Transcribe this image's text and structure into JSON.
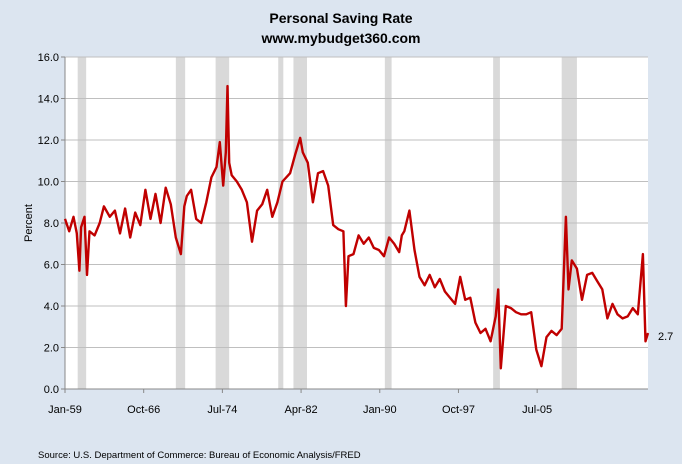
{
  "chart_data": {
    "type": "line",
    "title": "Personal Saving Rate",
    "subtitle": "www.mybudget360.com",
    "ylabel": "Percent",
    "xlabel": "",
    "ylim": [
      0,
      16
    ],
    "yticks": [
      "0.0",
      "2.0",
      "4.0",
      "6.0",
      "8.0",
      "10.0",
      "12.0",
      "14.0",
      "16.0"
    ],
    "xticks": [
      {
        "label": "Jan-59",
        "date": "1959-01"
      },
      {
        "label": "Oct-66",
        "date": "1966-10"
      },
      {
        "label": "Jul-74",
        "date": "1974-07"
      },
      {
        "label": "Apr-82",
        "date": "1982-04"
      },
      {
        "label": "Jan-90",
        "date": "1990-01"
      },
      {
        "label": "Oct-97",
        "date": "1997-10"
      },
      {
        "label": "Jul-05",
        "date": "2005-07"
      }
    ],
    "xlim": [
      "1959-01",
      "2016-06"
    ],
    "line_color": "#c00000",
    "recession_color": "#d9d9d9",
    "grid": "horizontal",
    "recessions": [
      [
        "1960-04",
        "1961-02"
      ],
      [
        "1969-12",
        "1970-11"
      ],
      [
        "1973-11",
        "1975-03"
      ],
      [
        "1980-01",
        "1980-07"
      ],
      [
        "1981-07",
        "1982-11"
      ],
      [
        "1990-07",
        "1991-03"
      ],
      [
        "2001-03",
        "2001-11"
      ],
      [
        "2007-12",
        "2009-06"
      ]
    ],
    "end_label": "2.7",
    "series": [
      {
        "values": [
          [
            "1959-01",
            8.2
          ],
          [
            "1959-06",
            7.6
          ],
          [
            "1959-11",
            8.3
          ],
          [
            "1960-03",
            7.5
          ],
          [
            "1960-06",
            5.7
          ],
          [
            "1960-08",
            7.8
          ],
          [
            "1960-12",
            8.3
          ],
          [
            "1961-03",
            5.5
          ],
          [
            "1961-06",
            7.6
          ],
          [
            "1961-12",
            7.4
          ],
          [
            "1962-06",
            8.0
          ],
          [
            "1962-11",
            8.8
          ],
          [
            "1963-06",
            8.3
          ],
          [
            "1963-12",
            8.6
          ],
          [
            "1964-06",
            7.5
          ],
          [
            "1964-12",
            8.7
          ],
          [
            "1965-06",
            7.3
          ],
          [
            "1965-12",
            8.5
          ],
          [
            "1966-06",
            7.9
          ],
          [
            "1966-12",
            9.6
          ],
          [
            "1967-06",
            8.2
          ],
          [
            "1967-12",
            9.4
          ],
          [
            "1968-06",
            8.0
          ],
          [
            "1968-12",
            9.7
          ],
          [
            "1969-06",
            8.9
          ],
          [
            "1969-12",
            7.3
          ],
          [
            "1970-06",
            6.5
          ],
          [
            "1970-10",
            8.8
          ],
          [
            "1971-01",
            9.3
          ],
          [
            "1971-06",
            9.6
          ],
          [
            "1971-12",
            8.2
          ],
          [
            "1972-06",
            8.0
          ],
          [
            "1972-12",
            9.0
          ],
          [
            "1973-06",
            10.2
          ],
          [
            "1973-12",
            10.7
          ],
          [
            "1974-04",
            11.9
          ],
          [
            "1974-08",
            9.8
          ],
          [
            "1974-11",
            11.4
          ],
          [
            "1975-01",
            14.6
          ],
          [
            "1975-03",
            10.9
          ],
          [
            "1975-06",
            10.3
          ],
          [
            "1975-12",
            10.0
          ],
          [
            "1976-06",
            9.6
          ],
          [
            "1976-12",
            9.0
          ],
          [
            "1977-06",
            7.1
          ],
          [
            "1977-12",
            8.6
          ],
          [
            "1978-06",
            8.9
          ],
          [
            "1978-12",
            9.6
          ],
          [
            "1979-06",
            8.3
          ],
          [
            "1979-12",
            9.0
          ],
          [
            "1980-06",
            10.0
          ],
          [
            "1981-03",
            10.4
          ],
          [
            "1981-09",
            11.3
          ],
          [
            "1982-03",
            12.1
          ],
          [
            "1982-06",
            11.4
          ],
          [
            "1982-12",
            10.9
          ],
          [
            "1983-06",
            9.0
          ],
          [
            "1983-12",
            10.4
          ],
          [
            "1984-06",
            10.5
          ],
          [
            "1984-12",
            9.8
          ],
          [
            "1985-06",
            7.9
          ],
          [
            "1985-12",
            7.7
          ],
          [
            "1986-06",
            7.6
          ],
          [
            "1986-09",
            4.0
          ],
          [
            "1986-12",
            6.4
          ],
          [
            "1987-06",
            6.5
          ],
          [
            "1987-12",
            7.4
          ],
          [
            "1988-06",
            7.0
          ],
          [
            "1988-12",
            7.3
          ],
          [
            "1989-06",
            6.8
          ],
          [
            "1989-12",
            6.7
          ],
          [
            "1990-06",
            6.4
          ],
          [
            "1990-12",
            7.3
          ],
          [
            "1991-06",
            7.0
          ],
          [
            "1991-12",
            6.6
          ],
          [
            "1992-03",
            7.4
          ],
          [
            "1992-06",
            7.6
          ],
          [
            "1992-12",
            8.6
          ],
          [
            "1993-06",
            6.7
          ],
          [
            "1993-12",
            5.4
          ],
          [
            "1994-06",
            5.0
          ],
          [
            "1994-12",
            5.5
          ],
          [
            "1995-06",
            4.9
          ],
          [
            "1995-12",
            5.3
          ],
          [
            "1996-06",
            4.7
          ],
          [
            "1996-12",
            4.4
          ],
          [
            "1997-06",
            4.1
          ],
          [
            "1997-12",
            5.4
          ],
          [
            "1998-06",
            4.3
          ],
          [
            "1998-12",
            4.4
          ],
          [
            "1999-06",
            3.2
          ],
          [
            "1999-12",
            2.7
          ],
          [
            "2000-06",
            2.9
          ],
          [
            "2000-12",
            2.3
          ],
          [
            "2001-06",
            3.5
          ],
          [
            "2001-09",
            4.8
          ],
          [
            "2001-12",
            1.0
          ],
          [
            "2002-06",
            4.0
          ],
          [
            "2002-12",
            3.9
          ],
          [
            "2003-06",
            3.7
          ],
          [
            "2003-12",
            3.6
          ],
          [
            "2004-06",
            3.6
          ],
          [
            "2004-12",
            3.7
          ],
          [
            "2005-06",
            1.9
          ],
          [
            "2005-12",
            1.1
          ],
          [
            "2006-06",
            2.5
          ],
          [
            "2006-12",
            2.8
          ],
          [
            "2007-06",
            2.6
          ],
          [
            "2007-12",
            2.9
          ],
          [
            "2008-05",
            8.3
          ],
          [
            "2008-08",
            4.8
          ],
          [
            "2008-12",
            6.2
          ],
          [
            "2009-06",
            5.8
          ],
          [
            "2009-12",
            4.3
          ],
          [
            "2010-06",
            5.5
          ],
          [
            "2010-12",
            5.6
          ],
          [
            "2011-06",
            5.2
          ],
          [
            "2011-12",
            4.8
          ],
          [
            "2012-06",
            3.4
          ],
          [
            "2012-12",
            4.1
          ],
          [
            "2013-06",
            3.6
          ],
          [
            "2013-12",
            3.4
          ],
          [
            "2014-06",
            3.5
          ],
          [
            "2014-12",
            3.9
          ],
          [
            "2015-06",
            3.6
          ],
          [
            "2015-12",
            6.5
          ],
          [
            "2016-03",
            2.3
          ],
          [
            "2016-06",
            2.7
          ]
        ]
      }
    ]
  },
  "source": "Source: U.S. Department of Commerce: Bureau of Economic Analysis/FRED"
}
